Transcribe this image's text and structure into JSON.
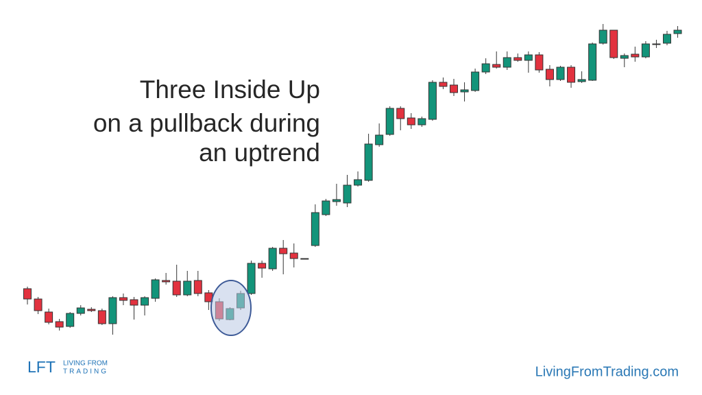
{
  "chart_data": {
    "type": "candlestick",
    "title": [
      "Three Inside Up",
      "on a pullback during",
      "an uptrend"
    ],
    "up_color": "#13947a",
    "down_color": "#e2323f",
    "ylim": [
      0,
      490
    ],
    "open": [
      69,
      54,
      35,
      21,
      14,
      33,
      39,
      37,
      18,
      56,
      53,
      45,
      55,
      81,
      80,
      60,
      81,
      63,
      50,
      24,
      41,
      62,
      106,
      98,
      128,
      121,
      112,
      132,
      177,
      196,
      194,
      220,
      227,
      279,
      294,
      332,
      318,
      308,
      316,
      370,
      366,
      356,
      358,
      385,
      396,
      392,
      406,
      402,
      410,
      389,
      374,
      392,
      371,
      373,
      427,
      446,
      405,
      411,
      407,
      425,
      427,
      441
    ],
    "high": [
      72,
      57,
      40,
      25,
      35,
      45,
      42,
      40,
      58,
      62,
      57,
      58,
      84,
      92,
      104,
      95,
      95,
      67,
      55,
      42,
      66,
      110,
      110,
      130,
      140,
      135,
      113,
      192,
      200,
      222,
      235,
      240,
      295,
      310,
      335,
      335,
      325,
      320,
      373,
      377,
      375,
      370,
      390,
      405,
      415,
      415,
      412,
      415,
      414,
      395,
      394,
      395,
      386,
      428,
      455,
      446,
      412,
      422,
      430,
      432,
      445,
      452
    ],
    "low": [
      46,
      32,
      17,
      8,
      12,
      30,
      35,
      16,
      2,
      45,
      24,
      30,
      50,
      75,
      57,
      58,
      58,
      38,
      22,
      23,
      38,
      60,
      85,
      95,
      90,
      100,
      112,
      130,
      175,
      190,
      188,
      218,
      225,
      276,
      292,
      300,
      302,
      305,
      314,
      360,
      350,
      342,
      356,
      382,
      390,
      388,
      400,
      384,
      384,
      364,
      372,
      362,
      369,
      372,
      425,
      404,
      392,
      400,
      405,
      420,
      424,
      435
    ],
    "close": [
      54,
      37,
      20,
      13,
      33,
      41,
      37,
      18,
      56,
      52,
      45,
      56,
      82,
      79,
      60,
      80,
      62,
      50,
      25,
      40,
      62,
      106,
      99,
      128,
      120,
      113,
      113,
      180,
      197,
      199,
      220,
      228,
      280,
      293,
      332,
      317,
      308,
      317,
      370,
      364,
      355,
      359,
      385,
      397,
      392,
      406,
      402,
      410,
      388,
      374,
      392,
      370,
      374,
      426,
      446,
      406,
      409,
      407,
      426,
      426,
      440,
      446
    ]
  },
  "logo": {
    "mark": "LFT",
    "line1": "LIVING FROM",
    "line2": "TRADING"
  },
  "website": "LivingFromTrading.com"
}
